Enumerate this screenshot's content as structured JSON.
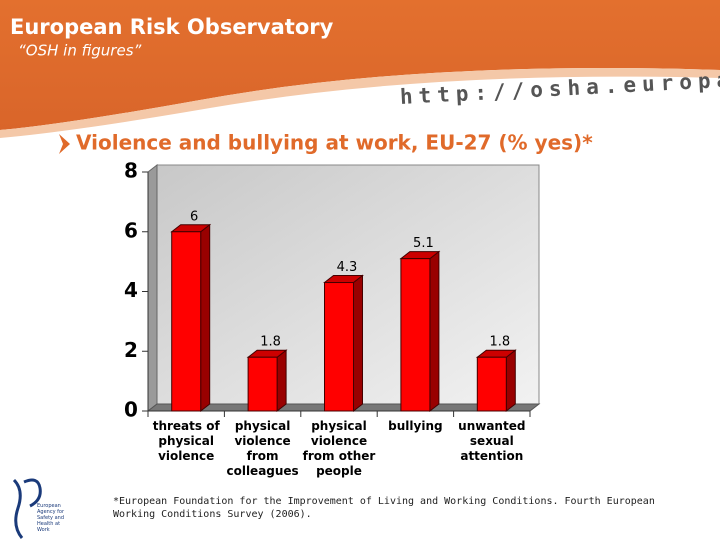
{
  "header": {
    "title": "European Risk Observatory",
    "subtitle": "“OSH in figures”",
    "url": "http://osha.europa.eu"
  },
  "logo_text": "European Agency for Safety and Health at Work",
  "chart_data": {
    "type": "bar",
    "title": "Violence and bullying at work, EU-27 (% yes)*",
    "categories": [
      "threats of physical violence",
      "physical violence from colleagues",
      "physical violence from other people",
      "bullying",
      "unwanted sexual attention"
    ],
    "values": [
      6,
      1.8,
      4.3,
      5.1,
      1.8
    ],
    "color": "#ff0000",
    "ylim": [
      0,
      8
    ],
    "yticks": [
      0,
      2,
      4,
      6,
      8
    ],
    "grid": false
  },
  "footnote": "*European Foundation for the Improvement of Living and Working Conditions. Fourth European Working Conditions Survey (2006)."
}
